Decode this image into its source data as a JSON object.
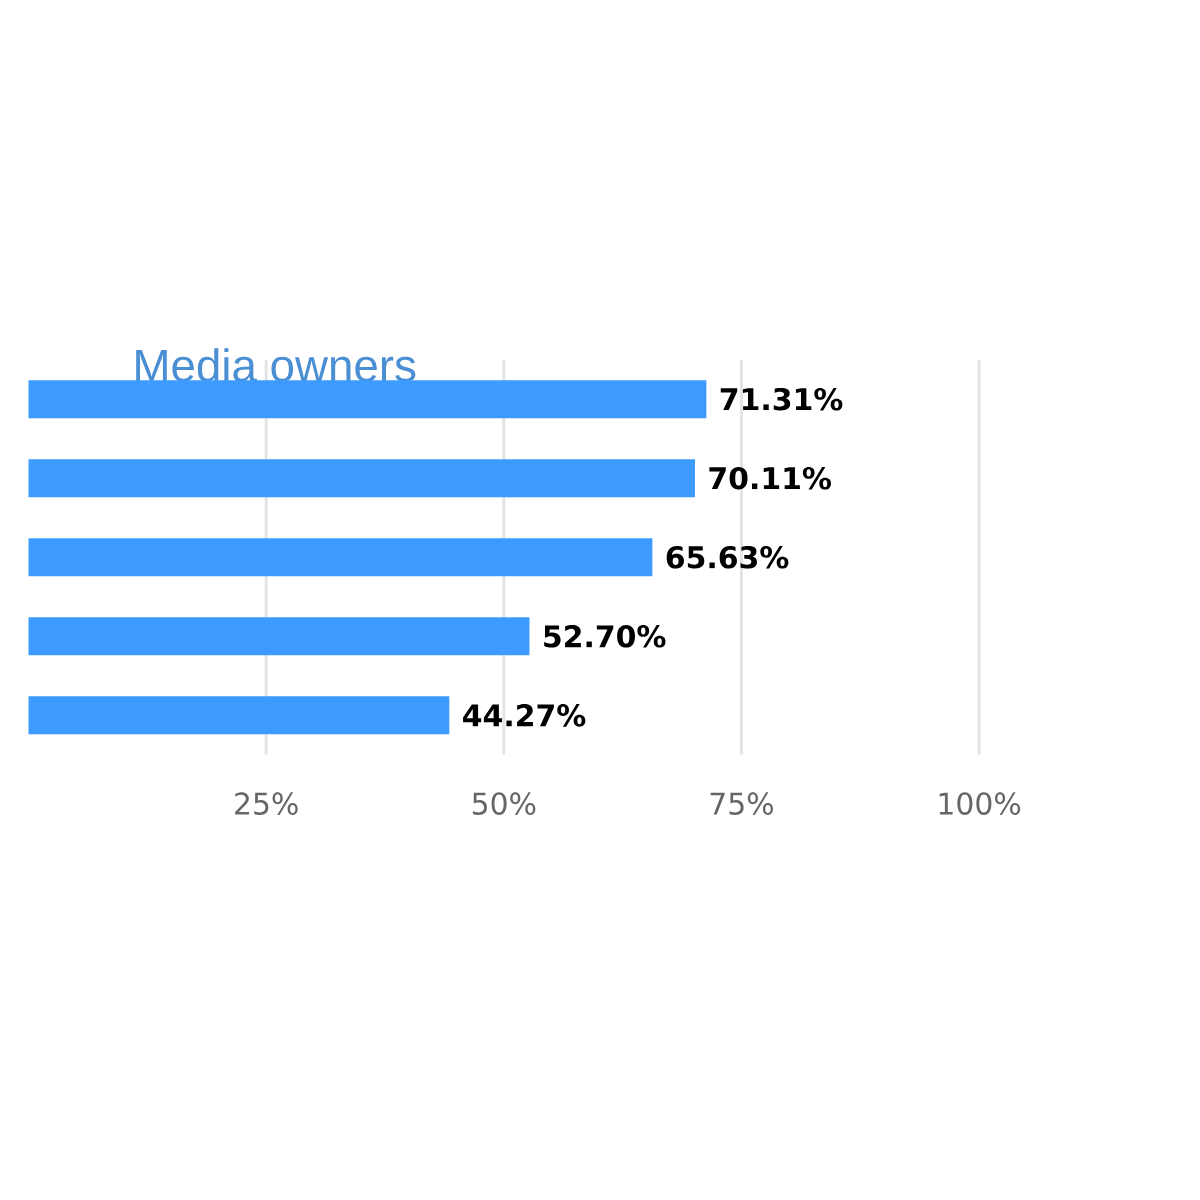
{
  "chart_data": {
    "type": "bar",
    "orientation": "horizontal",
    "title": "Media owners",
    "categories": [
      null,
      null,
      null,
      null,
      null
    ],
    "values": [
      71.31,
      70.11,
      65.63,
      52.7,
      44.27
    ],
    "value_labels": [
      "71.31%",
      "70.11%",
      "65.63%",
      "52.70%",
      "44.27%"
    ],
    "color": "#3d9bff",
    "xlim": [
      0,
      100
    ],
    "xticks": [
      {
        "value": 25,
        "label": "25%"
      },
      {
        "value": 50,
        "label": "50%"
      },
      {
        "value": 75,
        "label": "75%"
      },
      {
        "value": 100,
        "label": "100%"
      }
    ],
    "grid": "x"
  }
}
